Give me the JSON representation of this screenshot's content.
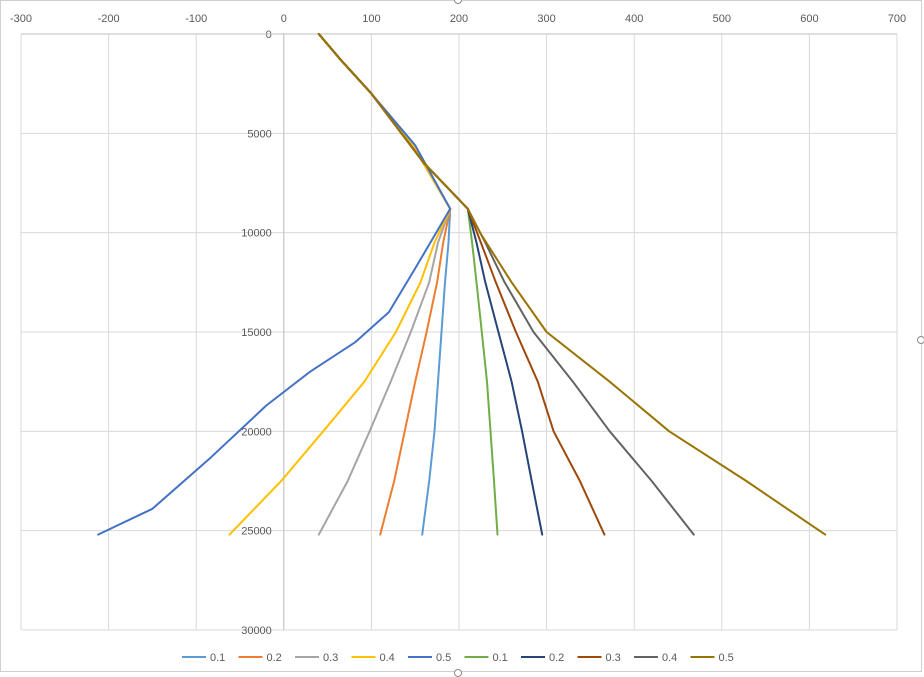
{
  "chart_data": {
    "type": "line",
    "title": "",
    "xlabel": "",
    "ylabel": "",
    "xlim": [
      -300,
      700
    ],
    "ylim": [
      0,
      30000
    ],
    "y_reversed": true,
    "x_axis_position": "top",
    "grid": true,
    "legend": "bottom",
    "x_ticks": [
      "-300",
      "-200",
      "-100",
      "0",
      "100",
      "200",
      "300",
      "400",
      "500",
      "600",
      "700"
    ],
    "y_ticks": [
      "0",
      "5000",
      "10000",
      "15000",
      "20000",
      "25000",
      "30000"
    ],
    "series": [
      {
        "name": "0.1",
        "color": "#5b9bd5",
        "values": [
          [
            40,
            0
          ],
          [
            65,
            1300
          ],
          [
            100,
            3000
          ],
          [
            150,
            5800
          ],
          [
            190,
            8800
          ],
          [
            188,
            10500
          ],
          [
            184,
            12500
          ],
          [
            180,
            15000
          ],
          [
            176,
            17500
          ],
          [
            172,
            20000
          ],
          [
            166,
            22500
          ],
          [
            158,
            25200
          ]
        ]
      },
      {
        "name": "0.2",
        "color": "#ed7d31",
        "values": [
          [
            40,
            0
          ],
          [
            65,
            1300
          ],
          [
            100,
            3000
          ],
          [
            150,
            5800
          ],
          [
            190,
            8800
          ],
          [
            182,
            10500
          ],
          [
            175,
            12500
          ],
          [
            163,
            15000
          ],
          [
            150,
            17500
          ],
          [
            138,
            20000
          ],
          [
            126,
            22500
          ],
          [
            110,
            25200
          ]
        ]
      },
      {
        "name": "0.3",
        "color": "#a5a5a5",
        "values": [
          [
            40,
            0
          ],
          [
            65,
            1300
          ],
          [
            100,
            3000
          ],
          [
            150,
            5800
          ],
          [
            190,
            8800
          ],
          [
            176,
            10500
          ],
          [
            166,
            12500
          ],
          [
            145,
            15000
          ],
          [
            122,
            17500
          ],
          [
            98,
            20000
          ],
          [
            73,
            22500
          ],
          [
            40,
            25200
          ]
        ]
      },
      {
        "name": "0.4",
        "color": "#ffc000",
        "values": [
          [
            40,
            0
          ],
          [
            65,
            1300
          ],
          [
            100,
            3000
          ],
          [
            150,
            5800
          ],
          [
            190,
            8800
          ],
          [
            172,
            10500
          ],
          [
            156,
            12500
          ],
          [
            128,
            15000
          ],
          [
            92,
            17500
          ],
          [
            45,
            20000
          ],
          [
            -3,
            22500
          ],
          [
            -62,
            25200
          ]
        ]
      },
      {
        "name": "0.5",
        "color": "#4472c4",
        "values": [
          [
            40,
            0
          ],
          [
            65,
            1300
          ],
          [
            100,
            3000
          ],
          [
            150,
            5600
          ],
          [
            175,
            7600
          ],
          [
            190,
            8800
          ],
          [
            170,
            10300
          ],
          [
            150,
            11800
          ],
          [
            120,
            14000
          ],
          [
            82,
            15500
          ],
          [
            30,
            17000
          ],
          [
            -20,
            18700
          ],
          [
            -83,
            21300
          ],
          [
            -150,
            23900
          ],
          [
            -212,
            25200
          ]
        ]
      },
      {
        "name": "0.1",
        "color": "#70ad47",
        "values": [
          [
            40,
            0
          ],
          [
            65,
            1300
          ],
          [
            100,
            3000
          ],
          [
            160,
            6500
          ],
          [
            210,
            8800
          ],
          [
            215,
            10500
          ],
          [
            220,
            12500
          ],
          [
            226,
            15000
          ],
          [
            232,
            17500
          ],
          [
            236,
            20000
          ],
          [
            240,
            22500
          ],
          [
            244,
            25200
          ]
        ]
      },
      {
        "name": "0.2",
        "color": "#264478",
        "values": [
          [
            40,
            0
          ],
          [
            65,
            1300
          ],
          [
            100,
            3000
          ],
          [
            160,
            6500
          ],
          [
            210,
            8800
          ],
          [
            220,
            10500
          ],
          [
            230,
            12500
          ],
          [
            245,
            15000
          ],
          [
            260,
            17500
          ],
          [
            272,
            20000
          ],
          [
            283,
            22500
          ],
          [
            295,
            25200
          ]
        ]
      },
      {
        "name": "0.3",
        "color": "#9e480e",
        "values": [
          [
            40,
            0
          ],
          [
            65,
            1300
          ],
          [
            100,
            3000
          ],
          [
            160,
            6500
          ],
          [
            210,
            8800
          ],
          [
            225,
            10500
          ],
          [
            242,
            12500
          ],
          [
            265,
            15000
          ],
          [
            290,
            17500
          ],
          [
            308,
            20000
          ],
          [
            338,
            22500
          ],
          [
            366,
            25200
          ]
        ]
      },
      {
        "name": "0.4",
        "color": "#636363",
        "values": [
          [
            40,
            0
          ],
          [
            65,
            1300
          ],
          [
            100,
            3000
          ],
          [
            160,
            6500
          ],
          [
            210,
            8800
          ],
          [
            230,
            10500
          ],
          [
            252,
            12500
          ],
          [
            285,
            15000
          ],
          [
            330,
            17500
          ],
          [
            372,
            20000
          ],
          [
            420,
            22500
          ],
          [
            468,
            25200
          ]
        ]
      },
      {
        "name": "0.5",
        "color": "#997300",
        "values": [
          [
            40,
            0
          ],
          [
            65,
            1300
          ],
          [
            100,
            3000
          ],
          [
            160,
            6500
          ],
          [
            210,
            8800
          ],
          [
            224,
            10000
          ],
          [
            260,
            12500
          ],
          [
            300,
            15000
          ],
          [
            372,
            17500
          ],
          [
            440,
            20000
          ],
          [
            528,
            22500
          ],
          [
            618,
            25200
          ]
        ]
      }
    ]
  }
}
